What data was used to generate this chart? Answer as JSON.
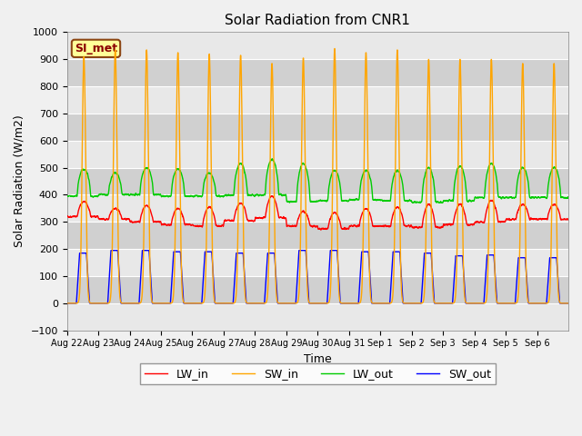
{
  "title": "Solar Radiation from CNR1",
  "xlabel": "Time",
  "ylabel": "Solar Radiation (W/m2)",
  "ylim": [
    -100,
    1000
  ],
  "yticks": [
    -100,
    0,
    100,
    200,
    300,
    400,
    500,
    600,
    700,
    800,
    900,
    1000
  ],
  "n_days": 16,
  "colors": {
    "LW_in": "#ff0000",
    "SW_in": "#ffa500",
    "LW_out": "#00cc00",
    "SW_out": "#0000ff"
  },
  "plot_bg_light": "#e8e8e8",
  "plot_bg_dark": "#d0d0d0",
  "fig_bg": "#f0f0f0",
  "grid_color": "#ffffff",
  "annotation_text": "SI_met",
  "annotation_bg": "#ffff99",
  "annotation_border": "#8B4513",
  "annotation_text_color": "#8B0000",
  "tick_labels": [
    "Aug 22",
    "Aug 23",
    "Aug 24",
    "Aug 25",
    "Aug 26",
    "Aug 27",
    "Aug 28",
    "Aug 29",
    "Aug 30",
    "Aug 31",
    "Sep 1",
    "Sep 2",
    "Sep 3",
    "Sep 4",
    "Sep 5",
    "Sep 6"
  ],
  "SW_in_peaks": [
    910,
    935,
    935,
    925,
    920,
    915,
    885,
    905,
    940,
    925,
    935,
    900,
    900,
    900,
    885
  ],
  "LW_out_peaks": [
    495,
    480,
    500,
    495,
    480,
    515,
    530,
    515,
    490,
    490,
    490,
    500,
    505,
    515,
    500
  ],
  "LW_in_baseline": [
    320,
    310,
    300,
    290,
    285,
    305,
    315,
    285,
    275,
    285,
    285,
    280,
    290,
    300,
    310
  ],
  "LW_in_peaks": [
    375,
    350,
    360,
    350,
    355,
    370,
    395,
    340,
    335,
    350,
    355,
    365,
    365,
    380,
    365
  ],
  "SW_out_peaks": [
    185,
    195,
    195,
    190,
    190,
    185,
    185,
    195,
    195,
    190,
    190,
    185,
    175,
    178,
    168
  ],
  "LW_out_baseline": [
    395,
    400,
    400,
    395,
    395,
    398,
    400,
    375,
    378,
    382,
    378,
    373,
    378,
    390,
    390
  ],
  "figsize": [
    6.4,
    4.8
  ],
  "dpi": 100
}
